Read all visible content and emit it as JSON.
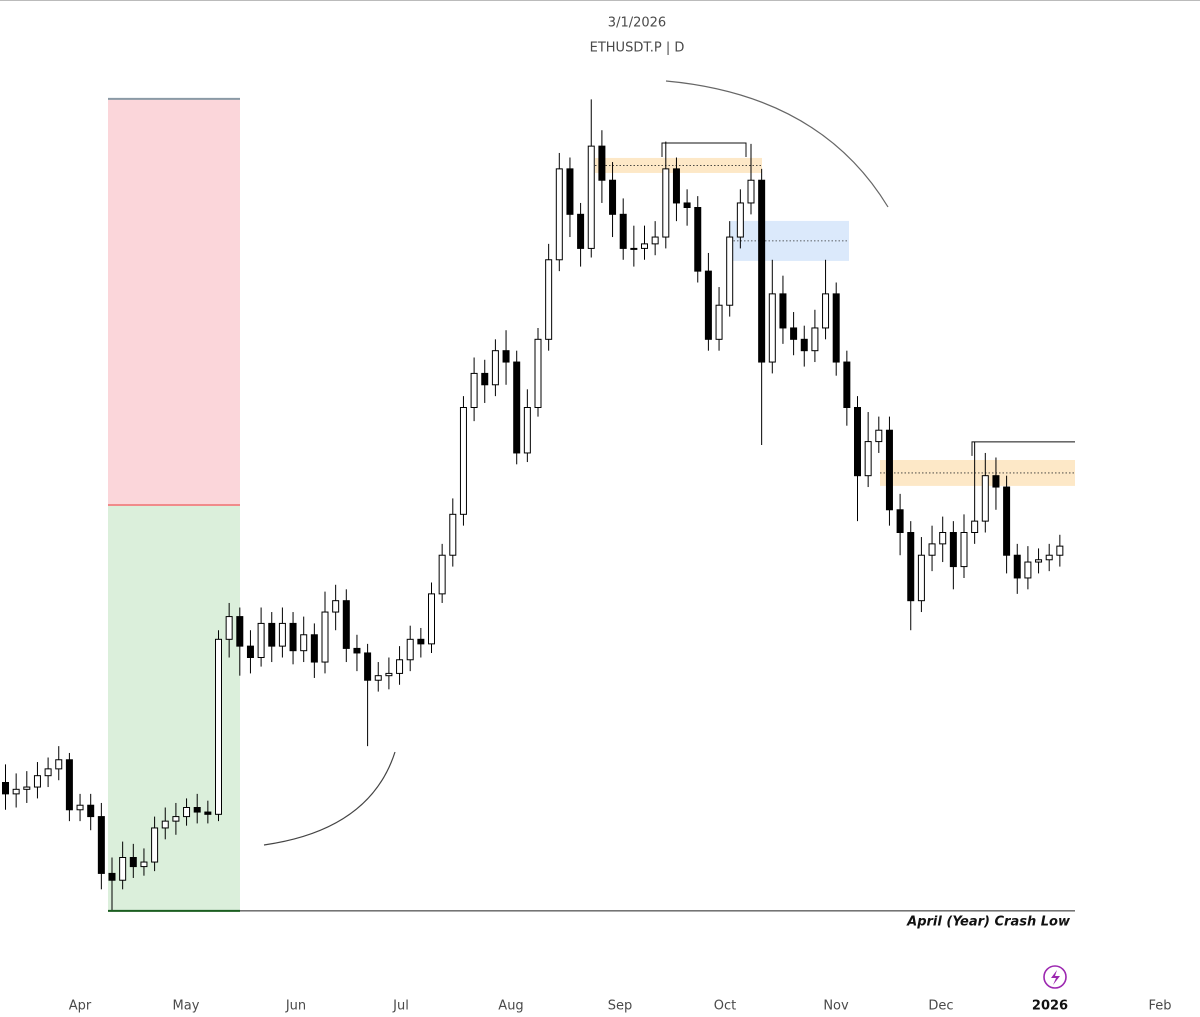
{
  "chart_data": {
    "type": "candlestick",
    "title": "3/1/2026",
    "subtitle": "ETHUSDT.P | D",
    "x_labels": [
      "Apr",
      "May",
      "Jun",
      "Jul",
      "Aug",
      "Sep",
      "Oct",
      "Nov",
      "Dec",
      "2026",
      "Feb"
    ],
    "ylim": [
      1169,
      5393
    ],
    "up_color": "#ffffff",
    "down_color": "#000000",
    "open": [
      1950,
      1900,
      1920,
      1930,
      1980,
      2010,
      2050,
      1830,
      1850,
      1800,
      1550,
      1520,
      1620,
      1580,
      1600,
      1750,
      1780,
      1800,
      1840,
      1820,
      1810,
      2580,
      2680,
      2550,
      2500,
      2650,
      2550,
      2650,
      2530,
      2600,
      2480,
      2700,
      2750,
      2540,
      2520,
      2400,
      2420,
      2430,
      2490,
      2580,
      2560,
      2780,
      2950,
      3130,
      3600,
      3750,
      3700,
      3850,
      3800,
      3400,
      3600,
      3900,
      4250,
      4650,
      4450,
      4300,
      4750,
      4600,
      4450,
      4300,
      4300,
      4320,
      4350,
      4650,
      4500,
      4480,
      4200,
      3900,
      4050,
      4350,
      4500,
      4600,
      3800,
      4100,
      3950,
      3900,
      3850,
      3950,
      4100,
      3800,
      3600,
      3300,
      3450,
      3500,
      3150,
      3050,
      2750,
      2950,
      3000,
      3050,
      2900,
      3050,
      3100,
      3300,
      3250,
      2950,
      2850,
      2920,
      2930,
      2950
    ],
    "high": [
      2030,
      1990,
      2000,
      2040,
      2060,
      2110,
      2080,
      1900,
      1900,
      1860,
      1620,
      1690,
      1680,
      1660,
      1800,
      1840,
      1860,
      1880,
      1900,
      1870,
      2620,
      2740,
      2720,
      2620,
      2720,
      2700,
      2720,
      2700,
      2680,
      2650,
      2790,
      2820,
      2800,
      2600,
      2560,
      2480,
      2500,
      2550,
      2640,
      2630,
      2830,
      3000,
      3200,
      3650,
      3820,
      3810,
      3900,
      3940,
      3850,
      3680,
      3950,
      4320,
      4720,
      4700,
      4500,
      4956,
      4820,
      4680,
      4520,
      4400,
      4400,
      4420,
      4770,
      4700,
      4560,
      4530,
      4280,
      4130,
      4420,
      4560,
      4760,
      4650,
      4250,
      4180,
      4020,
      3960,
      4030,
      4250,
      4150,
      3850,
      3650,
      3580,
      3560,
      3560,
      3220,
      3100,
      3030,
      3080,
      3120,
      3100,
      3130,
      3450,
      3400,
      3380,
      3300,
      3000,
      2990,
      2980,
      3000,
      3040
    ],
    "low": [
      1830,
      1840,
      1860,
      1880,
      1930,
      1960,
      1780,
      1780,
      1740,
      1480,
      1385,
      1480,
      1530,
      1540,
      1560,
      1700,
      1720,
      1760,
      1770,
      1770,
      1780,
      2500,
      2420,
      2430,
      2460,
      2480,
      2500,
      2470,
      2480,
      2410,
      2430,
      2620,
      2480,
      2440,
      2110,
      2350,
      2360,
      2380,
      2440,
      2500,
      2520,
      2740,
      2900,
      3080,
      3540,
      3620,
      3650,
      3700,
      3350,
      3360,
      3560,
      3850,
      4200,
      4350,
      4220,
      4260,
      4500,
      4350,
      4250,
      4220,
      4250,
      4270,
      4300,
      4420,
      4400,
      4150,
      3850,
      3850,
      4000,
      4300,
      4450,
      3435,
      3750,
      3880,
      3830,
      3780,
      3800,
      3900,
      3740,
      3520,
      3100,
      3250,
      3400,
      3080,
      2950,
      2620,
      2700,
      2880,
      2920,
      2800,
      2850,
      3000,
      3050,
      3150,
      2870,
      2780,
      2800,
      2870,
      2880,
      2900
    ],
    "close": [
      1900,
      1920,
      1930,
      1980,
      2010,
      2050,
      1830,
      1850,
      1800,
      1550,
      1520,
      1620,
      1580,
      1600,
      1750,
      1780,
      1800,
      1840,
      1820,
      1810,
      2580,
      2680,
      2550,
      2500,
      2650,
      2550,
      2650,
      2530,
      2600,
      2480,
      2700,
      2750,
      2540,
      2520,
      2400,
      2420,
      2430,
      2490,
      2580,
      2560,
      2780,
      2950,
      3130,
      3600,
      3750,
      3700,
      3850,
      3800,
      3400,
      3600,
      3900,
      4250,
      4650,
      4450,
      4300,
      4750,
      4600,
      4450,
      4300,
      4300,
      4320,
      4350,
      4650,
      4500,
      4480,
      4200,
      3900,
      4050,
      4350,
      4500,
      4600,
      3800,
      4100,
      3950,
      3900,
      3850,
      3950,
      4100,
      3800,
      3600,
      3300,
      3450,
      3500,
      3150,
      3050,
      2750,
      2950,
      3000,
      3050,
      2900,
      3050,
      3100,
      3300,
      3250,
      2950,
      2850,
      2920,
      2930,
      2950,
      2990
    ],
    "position_box": {
      "target": 4958,
      "entry": 3171,
      "stop": 1385,
      "profit_color": "#fbd6da",
      "loss_color": "#dbefdb"
    },
    "zones": [
      {
        "high": 4698,
        "low": 4632,
        "color": "#fde8c7"
      },
      {
        "high": 4421,
        "low": 4245,
        "color": "#dbe9fb"
      },
      {
        "high": 3369,
        "low": 3255,
        "color": "#fde8c7"
      }
    ],
    "levels": [
      4764,
      3449
    ],
    "crash_low": {
      "value": 1385,
      "label": "April (Year) Crash Low"
    }
  }
}
